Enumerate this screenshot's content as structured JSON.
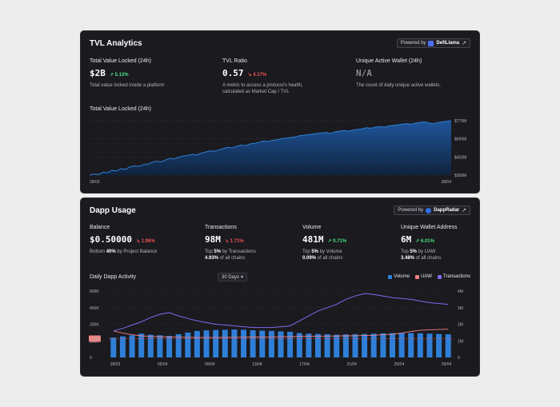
{
  "tvl": {
    "title": "TVL Analytics",
    "powered_by": "Powered by",
    "brand": "DefiLlama",
    "metrics": [
      {
        "label": "Total Value Locked (24h)",
        "value": "$2B",
        "change": "↗ 5.13%",
        "desc": "Total value locked inside a platform"
      },
      {
        "label": "TVL Ratio",
        "value": "0.57",
        "change": "↘ 4.17%",
        "desc1": "A metric to access a protocol's health,",
        "desc2": "calculated as Market Cap / TVL"
      },
      {
        "label": "Unique Active Wallet (24h)",
        "value": "N/A",
        "desc": "The count of daily unique active wallets."
      }
    ],
    "chart_title": "Total Value Locked (24h)",
    "chart_data": {
      "type": "area",
      "x_start": "28/03",
      "x_end": "28/04",
      "y_ticks": [
        "$770M",
        "$690M",
        "$450M",
        "$300M"
      ],
      "values": [
        300,
        310,
        305,
        325,
        320,
        340,
        335,
        355,
        350,
        370,
        380,
        375,
        390,
        395,
        410,
        420,
        415,
        430,
        445,
        440,
        455,
        465,
        470,
        480,
        475,
        490,
        500,
        510,
        505,
        520,
        530,
        540,
        535,
        550,
        560,
        555,
        570,
        575,
        585,
        595,
        590,
        600,
        605,
        615,
        620,
        625,
        630,
        640,
        645,
        650,
        655,
        660,
        665,
        670,
        660,
        675,
        680,
        685,
        680,
        690,
        695,
        700,
        710,
        705,
        715,
        720,
        715,
        725,
        730,
        735,
        740,
        745,
        740,
        750,
        755,
        760,
        750,
        745,
        755,
        760,
        765,
        770
      ]
    },
    "accent": "#2f7fd8"
  },
  "dapp": {
    "title": "Dapp Usage",
    "powered_by": "Powered by",
    "brand": "DappRadar",
    "metrics": [
      {
        "label": "Balance",
        "value": "$0.50000",
        "change": "↘ 1.96%",
        "desc_pre": "Bottom ",
        "desc_bold": "40%",
        "desc_post": " by Project Balance"
      },
      {
        "label": "Transactions",
        "value": "98M",
        "change": "↘ 1.71%",
        "desc_pre": "Top ",
        "desc_bold": "5%",
        "desc_post": " by Transactions",
        "desc2_bold": "4.93%",
        "desc2_post": " of all chains"
      },
      {
        "label": "Volume",
        "value": "481M",
        "change": "↗ 0.71%",
        "desc_pre": "Top ",
        "desc_bold": "5%",
        "desc_post": " by Volume",
        "desc2_bold": "0.09%",
        "desc2_post": " of all chains"
      },
      {
        "label": "Unique Wallet Address",
        "value": "6M",
        "change": "↗ 6.01%",
        "desc_pre": "Top ",
        "desc_bold": "5%",
        "desc_post": " by UAW",
        "desc2_bold": "3.48%",
        "desc2_post": " of all chains"
      }
    ],
    "chart_title": "Daily Dapp Activity",
    "range": "30 Days",
    "legend": [
      {
        "name": "Volume",
        "color": "#2f7fd8"
      },
      {
        "name": "UAW",
        "color": "#f08080"
      },
      {
        "name": "Transactions",
        "color": "#7b6cf0"
      }
    ],
    "chart_data": {
      "type": "bar",
      "x_ticks": [
        "28/03",
        "05/04",
        "09/04",
        "13/04",
        "17/04",
        "21/04",
        "25/04",
        "29/04"
      ],
      "y_left_ticks": [
        "600K",
        "450K",
        "300K",
        "150K",
        "0"
      ],
      "y_right_ticks": [
        "4M",
        "3M",
        "2M",
        "1M",
        "0"
      ],
      "uaw_marker": "170K",
      "volume": [
        180,
        190,
        200,
        215,
        205,
        200,
        195,
        210,
        225,
        240,
        245,
        248,
        250,
        252,
        250,
        245,
        242,
        240,
        235,
        232,
        220,
        215,
        212,
        210,
        205,
        208,
        210,
        212,
        215,
        218,
        220,
        222,
        220,
        218,
        215,
        212,
        210
      ],
      "uaw": [
        240,
        220,
        205,
        195,
        190,
        188,
        185,
        183,
        182,
        180,
        180,
        180,
        181,
        182,
        183,
        184,
        185,
        186,
        187,
        188,
        190,
        191,
        192,
        193,
        194,
        195,
        196,
        198,
        200,
        205,
        210,
        220,
        235,
        245,
        250,
        252,
        255
      ],
      "transactions": [
        1.6,
        1.75,
        1.95,
        2.15,
        2.4,
        2.6,
        2.7,
        2.5,
        2.35,
        2.2,
        2.1,
        2.0,
        1.95,
        1.9,
        1.85,
        1.8,
        1.8,
        1.8,
        1.85,
        1.9,
        2.2,
        2.5,
        2.8,
        3.0,
        3.2,
        3.5,
        3.7,
        3.85,
        3.8,
        3.7,
        3.6,
        3.55,
        3.5,
        3.4,
        3.3,
        3.25,
        3.2
      ]
    }
  }
}
